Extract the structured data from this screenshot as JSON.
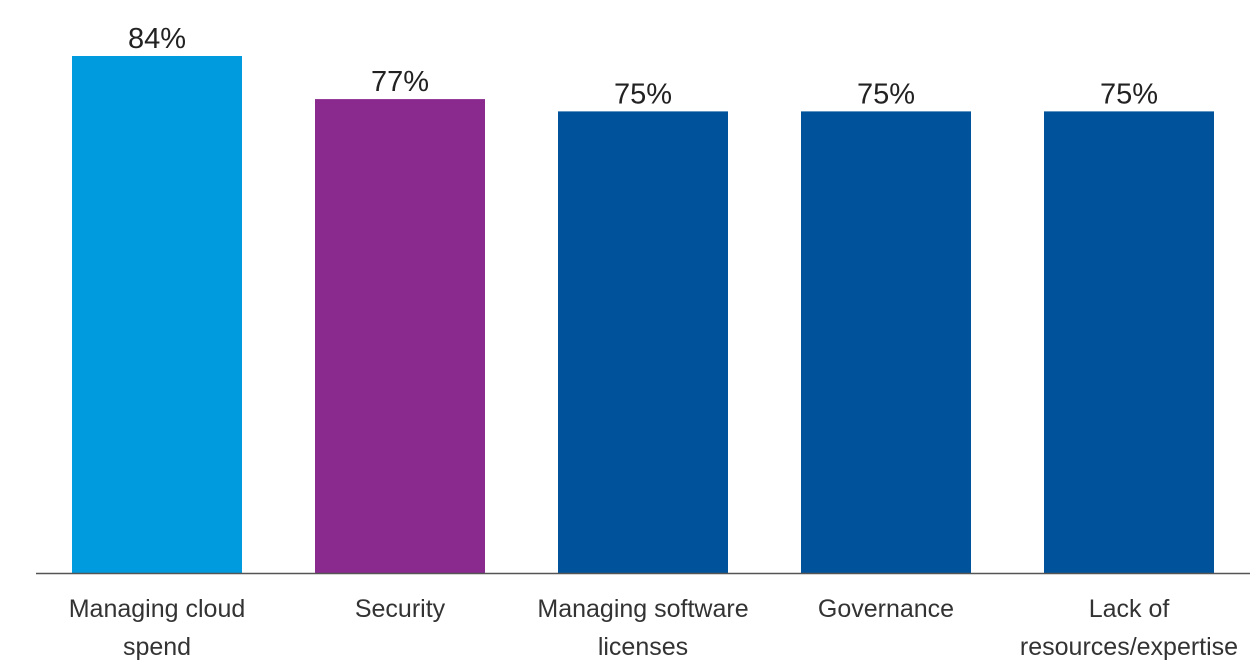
{
  "chart_data": {
    "type": "bar",
    "categories": [
      [
        "Managing cloud",
        "spend"
      ],
      [
        "Security"
      ],
      [
        "Managing software",
        "licenses"
      ],
      [
        "Governance"
      ],
      [
        "Lack of",
        "resources/expertise"
      ]
    ],
    "values": [
      84,
      77,
      75,
      75,
      75
    ],
    "value_labels": [
      "84%",
      "77%",
      "75%",
      "75%",
      "75%"
    ],
    "bar_colors": [
      "#009ADE",
      "#8B2A8E",
      "#00539B",
      "#00539B",
      "#00539B"
    ],
    "axis_color": "#555555",
    "title": "",
    "xlabel": "",
    "ylabel": "",
    "ylim": [
      0,
      84
    ],
    "grid": false,
    "legend": "none"
  }
}
